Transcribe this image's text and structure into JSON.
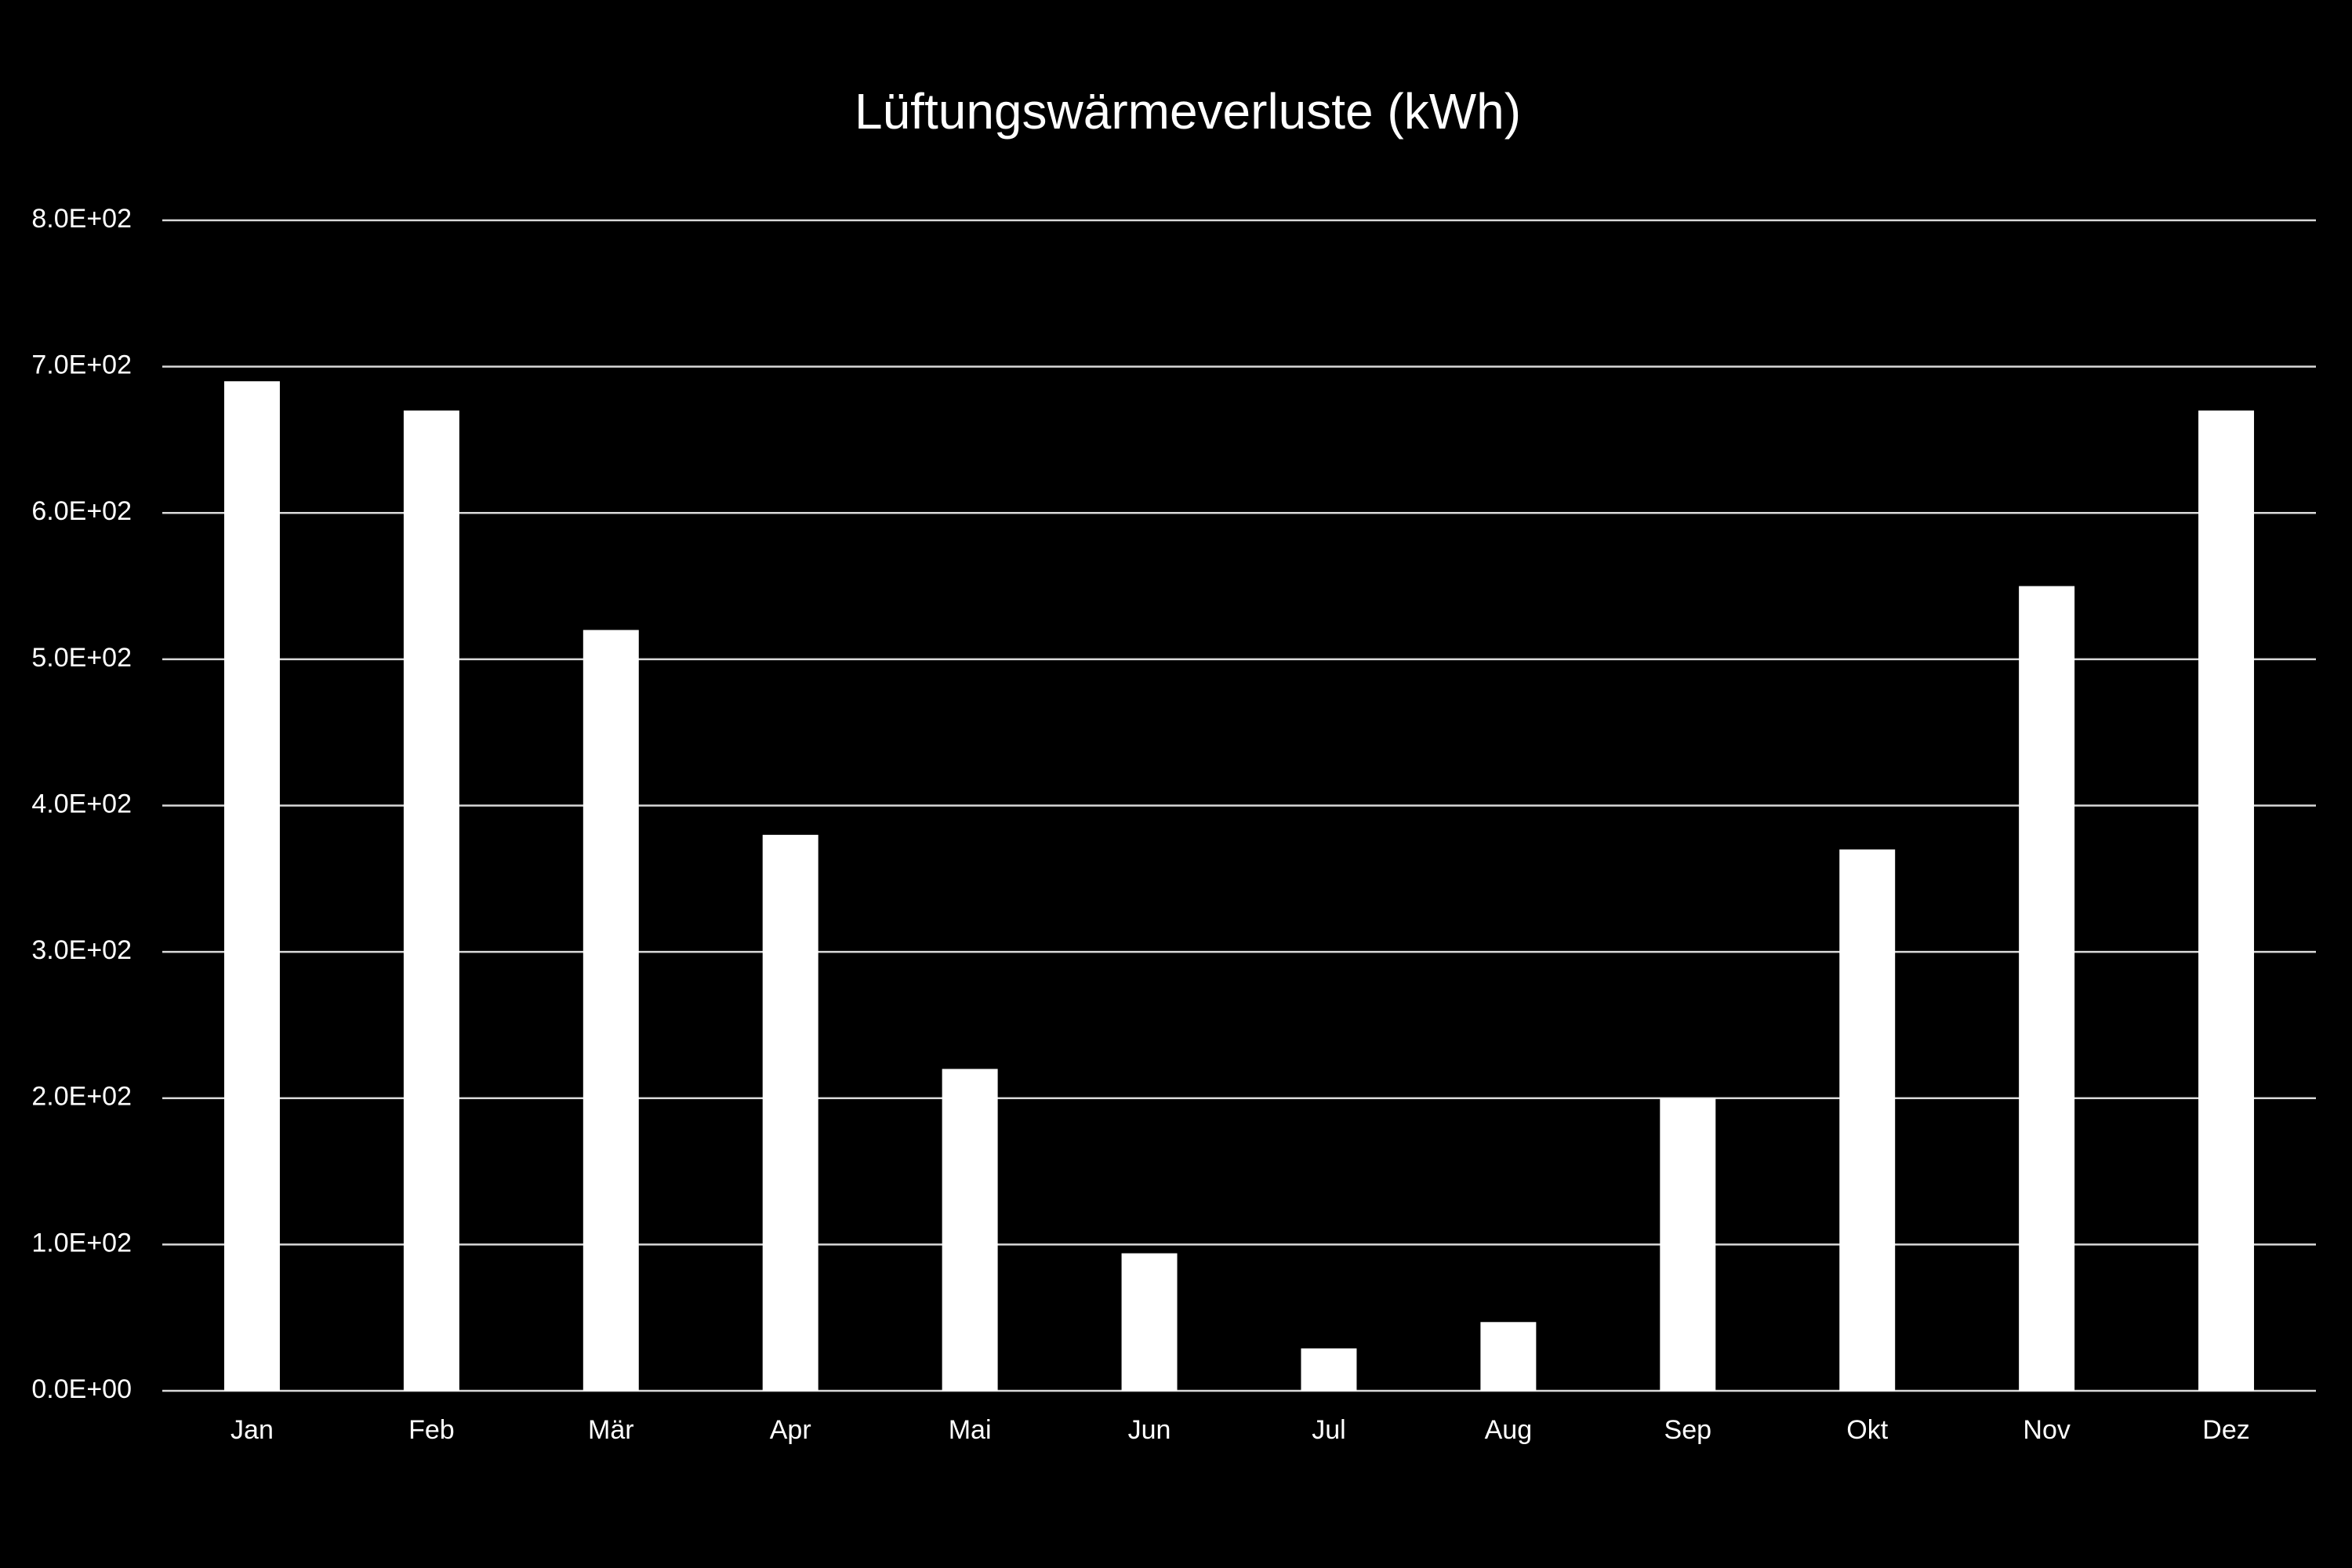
{
  "chart_data": {
    "type": "bar",
    "title": "Lüftungswärmeverluste (kWh)",
    "categories": [
      "Jan",
      "Feb",
      "Mär",
      "Apr",
      "Mai",
      "Jun",
      "Jul",
      "Aug",
      "Sep",
      "Okt",
      "Nov",
      "Dez"
    ],
    "values": [
      690,
      670,
      520,
      380,
      220,
      94,
      29,
      47,
      200,
      370,
      550,
      670
    ],
    "color": "#ffffff",
    "ylim": [
      0,
      800
    ],
    "yticks": [
      {
        "value": 0,
        "label": "0.0E+00"
      },
      {
        "value": 100,
        "label": "1.0E+02"
      },
      {
        "value": 200,
        "label": "2.0E+02"
      },
      {
        "value": 300,
        "label": "3.0E+02"
      },
      {
        "value": 400,
        "label": "4.0E+02"
      },
      {
        "value": 500,
        "label": "5.0E+02"
      },
      {
        "value": 600,
        "label": "6.0E+02"
      },
      {
        "value": 700,
        "label": "7.0E+02"
      },
      {
        "value": 800,
        "label": "8.0E+02"
      }
    ],
    "grid": true
  }
}
